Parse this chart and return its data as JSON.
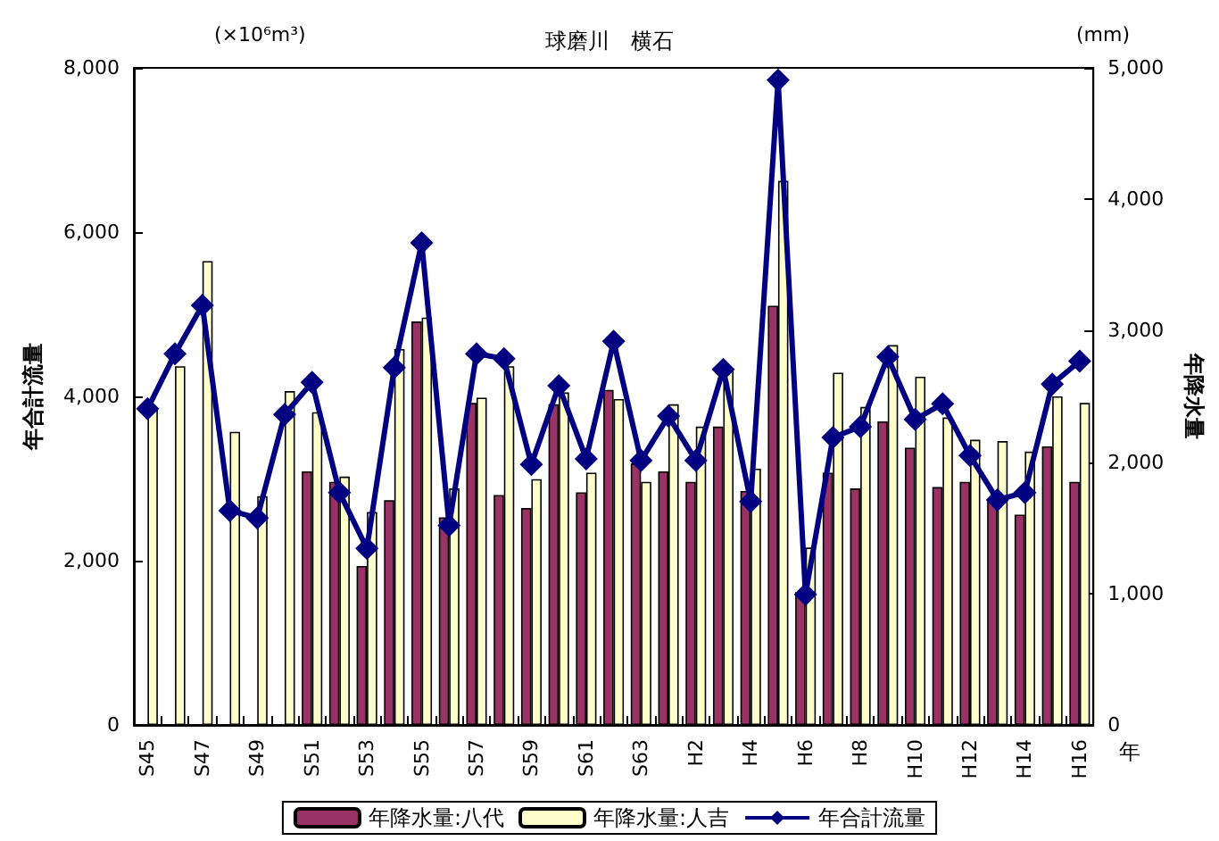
{
  "chart_data": {
    "type": "bar",
    "title": "球磨川　横石",
    "xlabel": "年",
    "ylabel": "年合計流量",
    "y2label": "年降水量",
    "annotations": [
      "(×10⁶m³)",
      "(mm)"
    ],
    "categories": [
      "S45",
      null,
      "S47",
      null,
      "S49",
      null,
      "S51",
      null,
      "S53",
      null,
      "S55",
      null,
      "S57",
      null,
      "S59",
      null,
      "S61",
      null,
      "S63",
      null,
      "H2",
      null,
      "H4",
      null,
      "H6",
      null,
      "H8",
      null,
      "H10",
      null,
      "H12",
      null,
      "H14",
      null,
      "H16"
    ],
    "series": [
      {
        "name": "年降水量:八代",
        "axis": "y2",
        "color": "#993366",
        "values": [
          null,
          null,
          null,
          null,
          null,
          null,
          1930,
          1850,
          1210,
          1710,
          3070,
          1580,
          2450,
          1750,
          1650,
          2440,
          1770,
          2550,
          1990,
          1930,
          1850,
          2270,
          1780,
          3190,
          1010,
          1920,
          1800,
          2310,
          2110,
          1810,
          1850,
          1710,
          1600,
          2120,
          1850
        ]
      },
      {
        "name": "年降水量:人吉",
        "axis": "y2",
        "color": "#ffffcc",
        "values": [
          2400,
          2730,
          3530,
          2230,
          1740,
          2540,
          2380,
          1890,
          1620,
          2860,
          3100,
          1800,
          2490,
          2730,
          1870,
          2530,
          1920,
          2480,
          1850,
          2440,
          2270,
          2710,
          1950,
          4140,
          1350,
          2680,
          2420,
          2890,
          2650,
          2340,
          2170,
          2160,
          2080,
          2500,
          2450
        ]
      },
      {
        "name": "年合計流量",
        "type": "line",
        "color": "#000080",
        "marker": "diamond",
        "values": [
          3850,
          4520,
          5110,
          2610,
          2520,
          3780,
          4170,
          2830,
          2150,
          4350,
          5870,
          2430,
          4520,
          4460,
          3170,
          4130,
          3240,
          4670,
          3220,
          3760,
          3220,
          4330,
          2720,
          7850,
          1590,
          3500,
          3630,
          4480,
          3720,
          3910,
          3280,
          2740,
          2830,
          4150,
          4430
        ]
      }
    ],
    "ylim": [
      0,
      8000
    ],
    "yticks": [
      0,
      {
        "value": 2000,
        "label": "2,000"
      },
      {
        "value": 4000,
        "label": "4,000"
      },
      {
        "value": 6000,
        "label": "6,000"
      },
      {
        "value": 8000,
        "label": "8,000"
      }
    ],
    "y2lim": [
      0,
      5000
    ],
    "y2ticks": [
      0,
      {
        "value": 1000,
        "label": "1,000"
      },
      {
        "value": 2000,
        "label": "2,000"
      },
      {
        "value": 3000,
        "label": "3,000"
      },
      {
        "value": 4000,
        "label": "4,000"
      },
      {
        "value": 5000,
        "label": "5,000"
      }
    ],
    "grid": false,
    "legend": "bottom"
  }
}
